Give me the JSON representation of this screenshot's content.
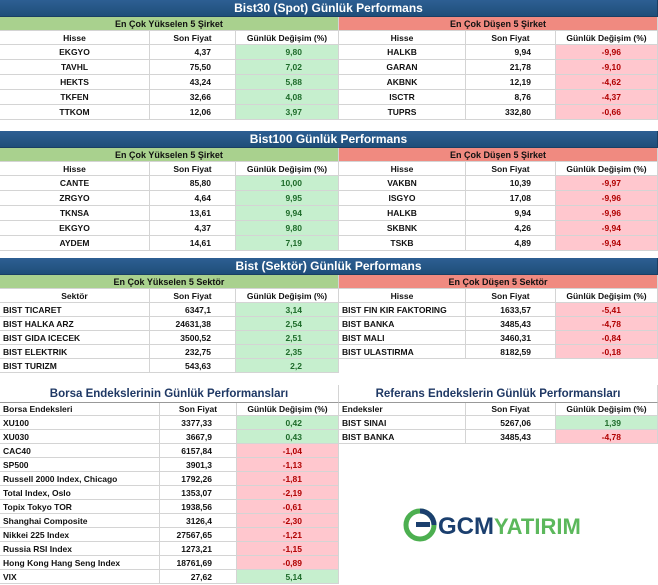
{
  "sections": [
    {
      "title": "Bist30 (Spot) Günlük Performans",
      "left": {
        "heading": "En Çok Yükselen 5 Şirket",
        "columns": [
          "Hisse",
          "Son Fiyat",
          "Günlük Değişim (%)"
        ],
        "rows": [
          [
            "EKGYO",
            "4,37",
            "9,80"
          ],
          [
            "TAVHL",
            "75,50",
            "7,02"
          ],
          [
            "HEKTS",
            "43,24",
            "5,88"
          ],
          [
            "TKFEN",
            "32,66",
            "4,08"
          ],
          [
            "TTKOM",
            "12,06",
            "3,97"
          ]
        ]
      },
      "right": {
        "heading": "En Çok Düşen 5 Şirket",
        "columns": [
          "Hisse",
          "Son Fiyat",
          "Günlük Değişim (%)"
        ],
        "rows": [
          [
            "HALKB",
            "9,94",
            "-9,96"
          ],
          [
            "GARAN",
            "21,78",
            "-9,10"
          ],
          [
            "AKBNK",
            "12,19",
            "-4,62"
          ],
          [
            "ISCTR",
            "8,76",
            "-4,37"
          ],
          [
            "TUPRS",
            "332,80",
            "-0,66"
          ]
        ]
      }
    },
    {
      "title": "Bist100 Günlük Performans",
      "left": {
        "heading": "En Çok Yükselen 5 Şirket",
        "columns": [
          "Hisse",
          "Son Fiyat",
          "Günlük Değişim (%)"
        ],
        "rows": [
          [
            "CANTE",
            "85,80",
            "10,00"
          ],
          [
            "ZRGYO",
            "4,64",
            "9,95"
          ],
          [
            "TKNSA",
            "13,61",
            "9,94"
          ],
          [
            "EKGYO",
            "4,37",
            "9,80"
          ],
          [
            "AYDEM",
            "14,61",
            "7,19"
          ]
        ]
      },
      "right": {
        "heading": "En Çok Düşen 5 Şirket",
        "columns": [
          "Hisse",
          "Son Fiyat",
          "Günlük Değişim (%)"
        ],
        "rows": [
          [
            "VAKBN",
            "10,39",
            "-9,97"
          ],
          [
            "ISGYO",
            "17,08",
            "-9,96"
          ],
          [
            "HALKB",
            "9,94",
            "-9,96"
          ],
          [
            "SKBNK",
            "4,26",
            "-9,94"
          ],
          [
            "TSKB",
            "4,89",
            "-9,94"
          ]
        ]
      }
    },
    {
      "title": "Bist (Sektör) Günlük Performans",
      "left": {
        "heading": "En Çok Yükselen 5 Sektör",
        "columns": [
          "Sektör",
          "Son Fiyat",
          "Günlük Değişim (%)"
        ],
        "rows": [
          [
            "BIST TICARET",
            "6347,1",
            "3,14"
          ],
          [
            "BIST HALKA ARZ",
            "24631,38",
            "2,54"
          ],
          [
            "BIST GIDA ICECEK",
            "3500,52",
            "2,51"
          ],
          [
            "BIST ELEKTRIK",
            "232,75",
            "2,35"
          ],
          [
            "BIST TURIZM",
            "543,63",
            "2,2"
          ]
        ]
      },
      "right": {
        "heading": "En Çok Düşen 5 Sektör",
        "columns": [
          "Hisse",
          "Son Fiyat",
          "Günlük Değişim (%)"
        ],
        "rows": [
          [
            "BIST FIN KIR FAKTORING",
            "1633,57",
            "-5,41"
          ],
          [
            "BIST BANKA",
            "3485,43",
            "-4,78"
          ],
          [
            "BIST MALI",
            "3460,31",
            "-0,84"
          ],
          [
            "BIST ULASTIRMA",
            "8182,59",
            "-0,18"
          ]
        ]
      }
    }
  ],
  "indices": {
    "left": {
      "title": "Borsa Endekslerinin Günlük Performansları",
      "columns": [
        "Borsa Endeksleri",
        "Son Fiyat",
        "Günlük Değişim (%)"
      ],
      "rows": [
        [
          "XU100",
          "3377,33",
          "0,42"
        ],
        [
          "XU030",
          "3667,9",
          "0,43"
        ],
        [
          "CAC40",
          "6157,84",
          "-1,04"
        ],
        [
          "SP500",
          "3901,3",
          "-1,13"
        ],
        [
          "Russell 2000 Index, Chicago",
          "1792,26",
          "-1,81"
        ],
        [
          "Total Index, Oslo",
          "1353,07",
          "-2,19"
        ],
        [
          "Topix Tokyo TOR",
          "1938,56",
          "-0,61"
        ],
        [
          "Shanghai Composite",
          "3126,4",
          "-2,30"
        ],
        [
          "Nikkei 225 Index",
          "27567,65",
          "-1,21"
        ],
        [
          "Russia RSI Index",
          "1273,21",
          "-1,15"
        ],
        [
          "Hong Kong Hang Seng Index",
          "18761,69",
          "-0,89"
        ],
        [
          "VIX",
          "27,62",
          "5,14"
        ]
      ]
    },
    "right": {
      "title": "Referans Endekslerin  Günlük Performansları",
      "columns": [
        "Endeksler",
        "Son Fiyat",
        "Günlük Değişim (%)"
      ],
      "rows": [
        [
          "BIST SINAI",
          "5267,06",
          "1,39"
        ],
        [
          "BIST BANKA",
          "3485,43",
          "-4,78"
        ]
      ]
    }
  },
  "logo": {
    "part1": "GCM",
    "part2": "YATIRIM"
  }
}
